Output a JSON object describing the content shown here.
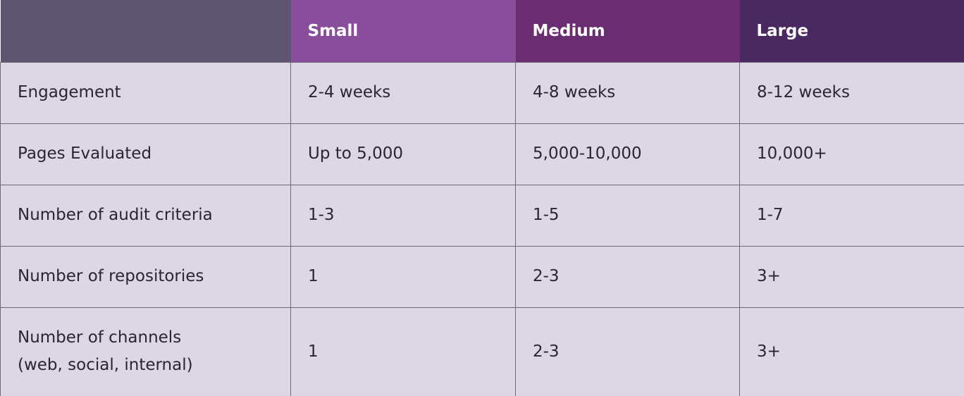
{
  "table": {
    "headers": [
      "Small",
      "Medium",
      "Large"
    ],
    "rows": [
      [
        [
          "Engagement"
        ],
        "2-4 weeks",
        "4-8 weeks",
        "8-12 weeks"
      ],
      [
        [
          "Pages Evaluated"
        ],
        "Up to 5,000",
        "5,000-10,000",
        "10,000+"
      ],
      [
        [
          "Number of audit criteria"
        ],
        "1-3",
        "1-5",
        "1-7"
      ],
      [
        [
          "Number of repositories"
        ],
        "1",
        "2-3",
        "3+"
      ],
      [
        [
          "Number of channels",
          "(web, social, internal)"
        ],
        "1",
        "2-3",
        "3+"
      ]
    ]
  }
}
